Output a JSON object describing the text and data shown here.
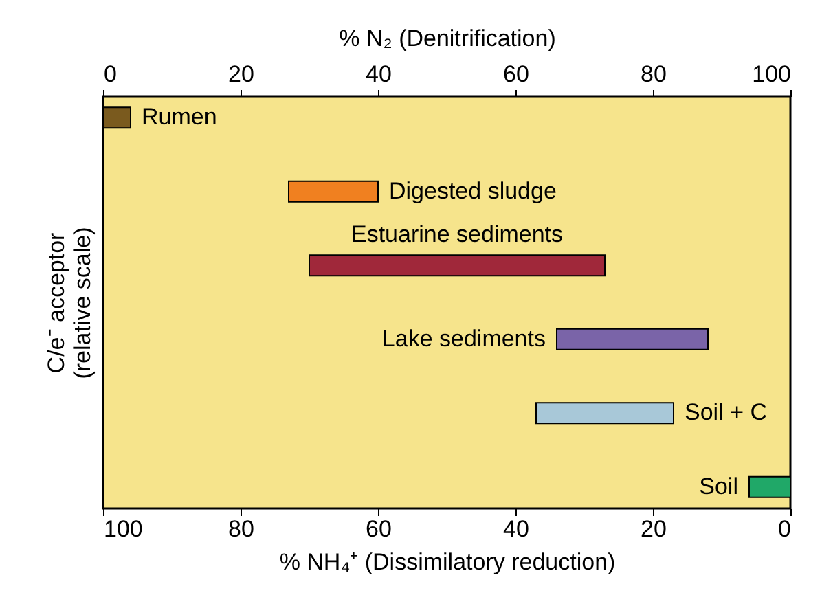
{
  "chart_data": {
    "type": "bar",
    "orientation": "horizontal",
    "xlabel": "% NH₄⁺ (Dissimilatory reduction)",
    "x2label": "% N₂ (Denitrification)",
    "ylabel": "C/e⁻ acceptor\n(relative scale)",
    "categories": [
      "Rumen",
      "Digested sludge",
      "Estuarine sediments",
      "Lake sediments",
      "Soil + C",
      "Soil"
    ],
    "base": [
      96,
      60,
      27,
      12,
      17,
      0
    ],
    "values": [
      4,
      13,
      43,
      22,
      20,
      6
    ],
    "colors": [
      "#7a5a1e",
      "#f08020",
      "#a0283a",
      "#7a64a8",
      "#a8c8d8",
      "#20a868"
    ],
    "xlim": [
      100,
      0
    ],
    "xticks": [
      100,
      80,
      60,
      40,
      20,
      0
    ],
    "x2lim": [
      0,
      100
    ],
    "x2ticks": [
      0,
      20,
      40,
      60,
      80,
      100
    ],
    "grid": false
  }
}
